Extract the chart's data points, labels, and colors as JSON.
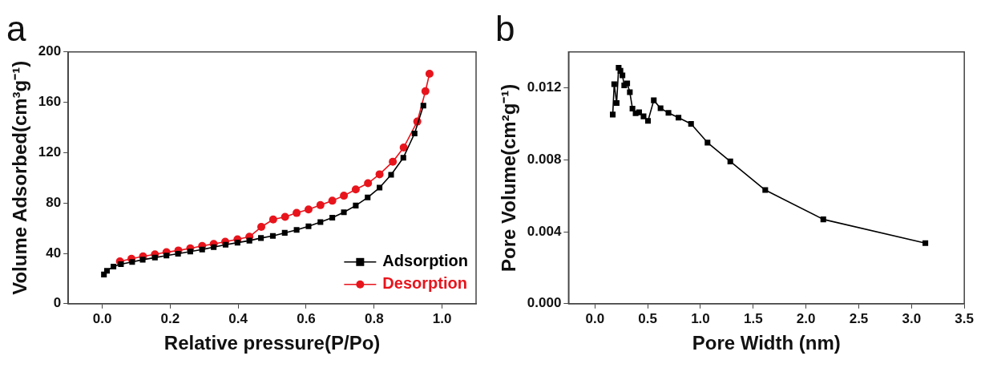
{
  "chart_data": [
    {
      "type": "line",
      "title": "a",
      "xlabel": "Relative pressure(P/Po)",
      "ylabel": "Volume Adsorbed(cm³g⁻¹)",
      "xlim": [
        -0.1,
        1.1
      ],
      "ylim": [
        0,
        200
      ],
      "xticks": [
        {
          "value": 0,
          "label": "0.0"
        },
        {
          "value": 0.2,
          "label": "0.2"
        },
        {
          "value": 0.4,
          "label": "0.4"
        },
        {
          "value": 0.6,
          "label": "0.6"
        },
        {
          "value": 0.8,
          "label": "0.8"
        },
        {
          "value": 1,
          "label": "1.0"
        }
      ],
      "yticks": [
        0,
        40,
        80,
        120,
        160,
        200
      ],
      "grid": false,
      "legend": "bottom right",
      "series": [
        {
          "name": "Adsorption",
          "color": "#000000",
          "marker": "square",
          "x": [
            0.005,
            0.014,
            0.033,
            0.055,
            0.088,
            0.119,
            0.155,
            0.189,
            0.223,
            0.259,
            0.294,
            0.328,
            0.363,
            0.398,
            0.433,
            0.467,
            0.502,
            0.537,
            0.572,
            0.607,
            0.642,
            0.677,
            0.711,
            0.746,
            0.781,
            0.816,
            0.85,
            0.886,
            0.919,
            0.945
          ],
          "values": [
            23.2,
            26.2,
            29.5,
            31.4,
            33.1,
            35,
            36.6,
            38.3,
            39.7,
            41.4,
            43,
            44.9,
            46.8,
            48.5,
            50.1,
            52.2,
            53.9,
            56.3,
            58.6,
            61.5,
            64.8,
            68.3,
            72.6,
            78,
            84.4,
            92.2,
            102.4,
            116,
            135.2,
            157.4
          ]
        },
        {
          "name": "Desorption",
          "color": "#e8141c",
          "marker": "circle",
          "x": [
            0.052,
            0.086,
            0.12,
            0.155,
            0.189,
            0.224,
            0.259,
            0.294,
            0.328,
            0.362,
            0.398,
            0.433,
            0.468,
            0.503,
            0.538,
            0.572,
            0.607,
            0.642,
            0.677,
            0.711,
            0.746,
            0.782,
            0.816,
            0.855,
            0.887,
            0.927,
            0.951,
            0.963
          ],
          "values": [
            33.6,
            35.7,
            37.6,
            39.2,
            40.9,
            42.3,
            44,
            45.9,
            47.5,
            49.2,
            51.1,
            53.2,
            61,
            66.9,
            69,
            72.1,
            74.9,
            78.3,
            81.8,
            85.8,
            90.8,
            95.7,
            102.8,
            112.8,
            124.1,
            144.7,
            168.8,
            182.7
          ]
        }
      ]
    },
    {
      "type": "line",
      "title": "b",
      "xlabel": "Pore Width (nm)",
      "ylabel": "Pore Volume(cm²g⁻¹)",
      "xlim": [
        -0.25,
        3.5
      ],
      "ylim": [
        0,
        0.014
      ],
      "xticks": [
        {
          "value": 0,
          "label": "0.0"
        },
        {
          "value": 0.5,
          "label": "0.5"
        },
        {
          "value": 1,
          "label": "1.0"
        },
        {
          "value": 1.5,
          "label": "1.5"
        },
        {
          "value": 2,
          "label": "2.0"
        },
        {
          "value": 2.5,
          "label": "2.5"
        },
        {
          "value": 3,
          "label": "3.0"
        },
        {
          "value": 3.5,
          "label": "3.5"
        }
      ],
      "yticks": [
        {
          "value": 0,
          "label": "0.000"
        },
        {
          "value": 0.004,
          "label": "0.004"
        },
        {
          "value": 0.008,
          "label": "0.008"
        },
        {
          "value": 0.012,
          "label": "0.012"
        }
      ],
      "grid": false,
      "series": [
        {
          "color": "#000000",
          "marker": "square",
          "x": [
            0.169,
            0.183,
            0.206,
            0.225,
            0.242,
            0.261,
            0.278,
            0.306,
            0.331,
            0.356,
            0.386,
            0.419,
            0.461,
            0.503,
            0.558,
            0.622,
            0.697,
            0.792,
            0.911,
            1.067,
            1.283,
            1.614,
            2.164,
            3.131
          ],
          "values": [
            0.01052,
            0.01221,
            0.01116,
            0.01312,
            0.01295,
            0.0127,
            0.01214,
            0.01225,
            0.01176,
            0.01085,
            0.01059,
            0.01064,
            0.01042,
            0.01017,
            0.01131,
            0.01087,
            0.01061,
            0.01035,
            0.01,
            0.00896,
            0.00791,
            0.00632,
            0.00469,
            0.00337
          ]
        }
      ]
    }
  ]
}
